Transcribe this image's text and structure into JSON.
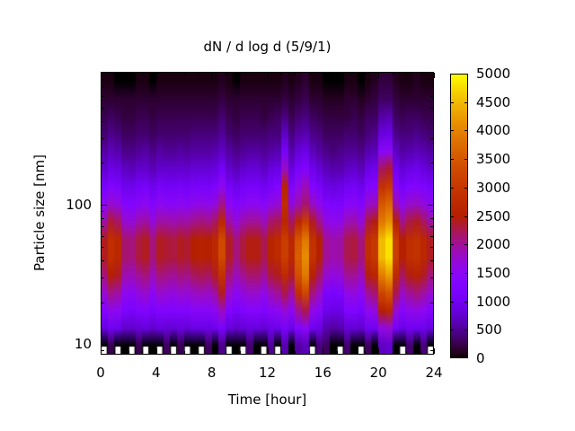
{
  "figure": {
    "background": "#ffffff",
    "text_color": "#000000"
  },
  "title": "dN / d log d (5/9/1)",
  "axes": {
    "x": {
      "label": "Time [hour]",
      "min": 0,
      "max": 24,
      "major_ticks": [
        0,
        4,
        8,
        12,
        16,
        20,
        24
      ],
      "minor_step": 1
    },
    "y": {
      "label": "Particle size [nm]",
      "scale": "log",
      "min": 8.4,
      "max": 900,
      "labeled_ticks": [
        10,
        100
      ],
      "minor_ticks": [
        9,
        20,
        30,
        40,
        50,
        60,
        70,
        80,
        90,
        200,
        300,
        400,
        500,
        600,
        700,
        800,
        900
      ]
    }
  },
  "colorbar": {
    "min": 0,
    "max": 5000,
    "tick_step": 500,
    "tick_labels": [
      "0",
      "500",
      "1000",
      "1500",
      "2000",
      "2500",
      "3000",
      "3500",
      "4000",
      "4500",
      "5000"
    ],
    "palette": {
      "name": "gnuplot-pm3d-rgbformulae-7-5-15",
      "formula": "R=sqrt(x), G=x^3, B=max(0,sin(360x)), x=value/5000",
      "stops": [
        {
          "value": 0,
          "hex": "#000000"
        },
        {
          "value": 500,
          "hex": "#510096"
        },
        {
          "value": 1000,
          "hex": "#7202f2"
        },
        {
          "value": 1500,
          "hex": "#8c07f2"
        },
        {
          "value": 2000,
          "hex": "#a11096"
        },
        {
          "value": 2500,
          "hex": "#b42000"
        },
        {
          "value": 3000,
          "hex": "#c63700"
        },
        {
          "value": 3500,
          "hex": "#d65b00"
        },
        {
          "value": 4000,
          "hex": "#e48300"
        },
        {
          "value": 4500,
          "hex": "#f2ba00"
        },
        {
          "value": 5000,
          "hex": "#ffff00"
        }
      ]
    }
  },
  "chart_data": {
    "type": "heatmap",
    "title": "dN / d log d (5/9/1)",
    "xlabel": "Time [hour]",
    "ylabel": "Particle size [nm]",
    "x_start_hour": 0,
    "x_bin_hours": 0.5,
    "n_time_bins": 48,
    "size_bins_nm": [
      9.7,
      13.0,
      17.4,
      23.3,
      31.3,
      41.9,
      56.1,
      75.1,
      100.6,
      134.7,
      180.4,
      241.6,
      323.6,
      433.4,
      580.4,
      777.3
    ],
    "missing_value": -1,
    "values_rows_small_to_large": [
      [
        -1,
        250,
        -1,
        0,
        -1,
        250,
        -1,
        0,
        -1,
        300,
        -1,
        250,
        -1,
        0,
        -1,
        300,
        0,
        450,
        -1,
        0,
        -1,
        350,
        0,
        -1,
        500,
        -1,
        600,
        0,
        550,
        650,
        -1,
        400,
        300,
        0,
        -1,
        350,
        0,
        -1,
        300,
        0,
        700,
        750,
        0,
        -1,
        350,
        0,
        400,
        -1
      ],
      [
        850,
        1000,
        950,
        750,
        750,
        800,
        850,
        750,
        850,
        800,
        800,
        850,
        800,
        900,
        900,
        900,
        950,
        1150,
        850,
        750,
        800,
        850,
        850,
        800,
        900,
        950,
        1100,
        950,
        1250,
        1450,
        1000,
        900,
        600,
        550,
        600,
        800,
        800,
        750,
        1000,
        1050,
        1600,
        1700,
        1100,
        900,
        1000,
        1000,
        950,
        850
      ],
      [
        1300,
        1550,
        1500,
        1200,
        1150,
        1250,
        1300,
        1150,
        1300,
        1300,
        1250,
        1300,
        1300,
        1400,
        1400,
        1400,
        1500,
        1800,
        1300,
        1150,
        1250,
        1350,
        1350,
        1250,
        1450,
        1500,
        1700,
        1500,
        2000,
        2250,
        1600,
        1400,
        950,
        900,
        900,
        1250,
        1250,
        1150,
        1550,
        1650,
        2500,
        2650,
        1700,
        1400,
        1550,
        1600,
        1500,
        1300
      ],
      [
        1750,
        2050,
        1950,
        1550,
        1500,
        1650,
        1750,
        1500,
        1750,
        1700,
        1650,
        1750,
        1700,
        1800,
        1850,
        1800,
        1950,
        2400,
        1750,
        1500,
        1650,
        1750,
        1750,
        1600,
        1850,
        2000,
        2250,
        1950,
        2850,
        3250,
        2100,
        1800,
        1200,
        1150,
        1200,
        1600,
        1650,
        1500,
        2000,
        2150,
        3250,
        3450,
        2250,
        1800,
        2000,
        2100,
        1950,
        1750
      ],
      [
        2100,
        2500,
        2400,
        1900,
        1850,
        2000,
        2100,
        1850,
        2100,
        2050,
        2000,
        2100,
        2050,
        2200,
        2250,
        2200,
        2400,
        2900,
        2100,
        1850,
        2000,
        2150,
        2150,
        2000,
        2300,
        2400,
        2750,
        2400,
        3400,
        3900,
        2550,
        2200,
        1750,
        1650,
        1700,
        2000,
        2000,
        1850,
        2450,
        2650,
        3950,
        4250,
        2750,
        2200,
        2450,
        2550,
        2400,
        2100
      ],
      [
        2400,
        2850,
        2700,
        2150,
        2100,
        2300,
        2400,
        2100,
        2400,
        2350,
        2300,
        2400,
        2350,
        2500,
        2550,
        2500,
        2700,
        3300,
        2400,
        2100,
        2300,
        2450,
        2450,
        2250,
        2600,
        2750,
        3100,
        2700,
        3600,
        4100,
        2900,
        2500,
        2000,
        1900,
        1950,
        2250,
        2300,
        2100,
        2800,
        3000,
        4500,
        4800,
        3100,
        2500,
        2800,
        2900,
        2700,
        2400
      ],
      [
        2400,
        2850,
        2700,
        2150,
        2100,
        2300,
        2400,
        2100,
        2400,
        2350,
        2300,
        2400,
        2350,
        2500,
        2550,
        2500,
        2700,
        3300,
        2400,
        2100,
        2300,
        2450,
        2450,
        2250,
        2600,
        2750,
        3100,
        2700,
        3450,
        3900,
        2900,
        2500,
        2000,
        1900,
        1950,
        2250,
        2300,
        2100,
        2800,
        3000,
        4500,
        4800,
        3100,
        2500,
        2800,
        2900,
        2700,
        2400
      ],
      [
        1950,
        2350,
        2200,
        1750,
        1700,
        1900,
        1950,
        1700,
        1950,
        1950,
        1900,
        1950,
        1950,
        2050,
        2100,
        2050,
        2200,
        2700,
        1950,
        1700,
        1900,
        2000,
        2000,
        1850,
        2150,
        2250,
        2650,
        2200,
        2700,
        3100,
        2400,
        2050,
        1650,
        1550,
        1600,
        1850,
        1900,
        1700,
        2300,
        2450,
        3900,
        4150,
        2550,
        2050,
        2300,
        2400,
        2200,
        1950
      ],
      [
        1500,
        1750,
        1650,
        1350,
        1300,
        1450,
        1500,
        1300,
        1500,
        1450,
        1450,
        1500,
        1450,
        1550,
        1600,
        1550,
        1650,
        2050,
        1500,
        1300,
        1450,
        1500,
        1500,
        1400,
        1600,
        1700,
        2800,
        1650,
        1900,
        2150,
        1800,
        1550,
        1250,
        1200,
        1200,
        1400,
        1450,
        1300,
        1750,
        1850,
        3500,
        3700,
        1900,
        1550,
        1750,
        1800,
        1650,
        1500
      ],
      [
        1100,
        1300,
        1200,
        950,
        950,
        1050,
        1100,
        950,
        1100,
        1050,
        1050,
        1100,
        1050,
        1100,
        1150,
        1100,
        1200,
        1500,
        1100,
        950,
        1050,
        1100,
        1100,
        1000,
        1150,
        1250,
        2600,
        1200,
        1600,
        1850,
        1300,
        1100,
        900,
        850,
        900,
        1000,
        1050,
        950,
        1250,
        1350,
        2900,
        3050,
        1400,
        1100,
        1250,
        1300,
        1200,
        1100
      ],
      [
        750,
        900,
        850,
        700,
        650,
        750,
        750,
        650,
        750,
        750,
        750,
        750,
        750,
        800,
        800,
        800,
        850,
        1050,
        750,
        650,
        750,
        800,
        800,
        700,
        850,
        900,
        1800,
        850,
        1150,
        1300,
        950,
        800,
        650,
        600,
        600,
        700,
        750,
        650,
        900,
        950,
        2200,
        2350,
        1000,
        800,
        900,
        950,
        850,
        750
      ],
      [
        550,
        650,
        600,
        450,
        450,
        500,
        550,
        450,
        550,
        500,
        500,
        550,
        500,
        550,
        550,
        550,
        600,
        700,
        550,
        450,
        500,
        550,
        550,
        500,
        550,
        600,
        1100,
        600,
        800,
        900,
        650,
        550,
        450,
        400,
        450,
        500,
        500,
        450,
        600,
        650,
        1400,
        1500,
        700,
        550,
        600,
        650,
        600,
        550
      ],
      [
        350,
        450,
        400,
        300,
        300,
        350,
        350,
        300,
        350,
        350,
        350,
        350,
        350,
        400,
        400,
        400,
        400,
        500,
        350,
        300,
        350,
        350,
        350,
        350,
        400,
        400,
        700,
        400,
        550,
        600,
        450,
        400,
        300,
        300,
        300,
        350,
        350,
        300,
        400,
        450,
        850,
        900,
        450,
        400,
        400,
        450,
        400,
        350
      ],
      [
        250,
        300,
        250,
        200,
        200,
        250,
        250,
        200,
        250,
        250,
        250,
        250,
        250,
        250,
        250,
        250,
        250,
        350,
        250,
        200,
        250,
        250,
        250,
        200,
        250,
        300,
        400,
        250,
        350,
        400,
        300,
        250,
        200,
        200,
        200,
        200,
        250,
        200,
        300,
        300,
        550,
        600,
        300,
        250,
        300,
        300,
        250,
        250
      ],
      [
        150,
        150,
        150,
        150,
        150,
        150,
        150,
        150,
        150,
        150,
        150,
        150,
        150,
        150,
        150,
        150,
        150,
        200,
        150,
        150,
        150,
        150,
        150,
        150,
        150,
        150,
        200,
        150,
        200,
        250,
        150,
        150,
        100,
        100,
        100,
        150,
        150,
        100,
        150,
        200,
        300,
        300,
        200,
        150,
        150,
        150,
        150,
        150
      ],
      [
        50,
        50,
        0,
        0,
        0,
        50,
        50,
        0,
        50,
        50,
        50,
        50,
        50,
        50,
        50,
        50,
        50,
        100,
        50,
        0,
        50,
        50,
        50,
        50,
        50,
        50,
        100,
        50,
        100,
        150,
        50,
        50,
        0,
        0,
        0,
        50,
        50,
        0,
        50,
        100,
        200,
        200,
        100,
        50,
        50,
        100,
        50,
        50
      ]
    ]
  }
}
